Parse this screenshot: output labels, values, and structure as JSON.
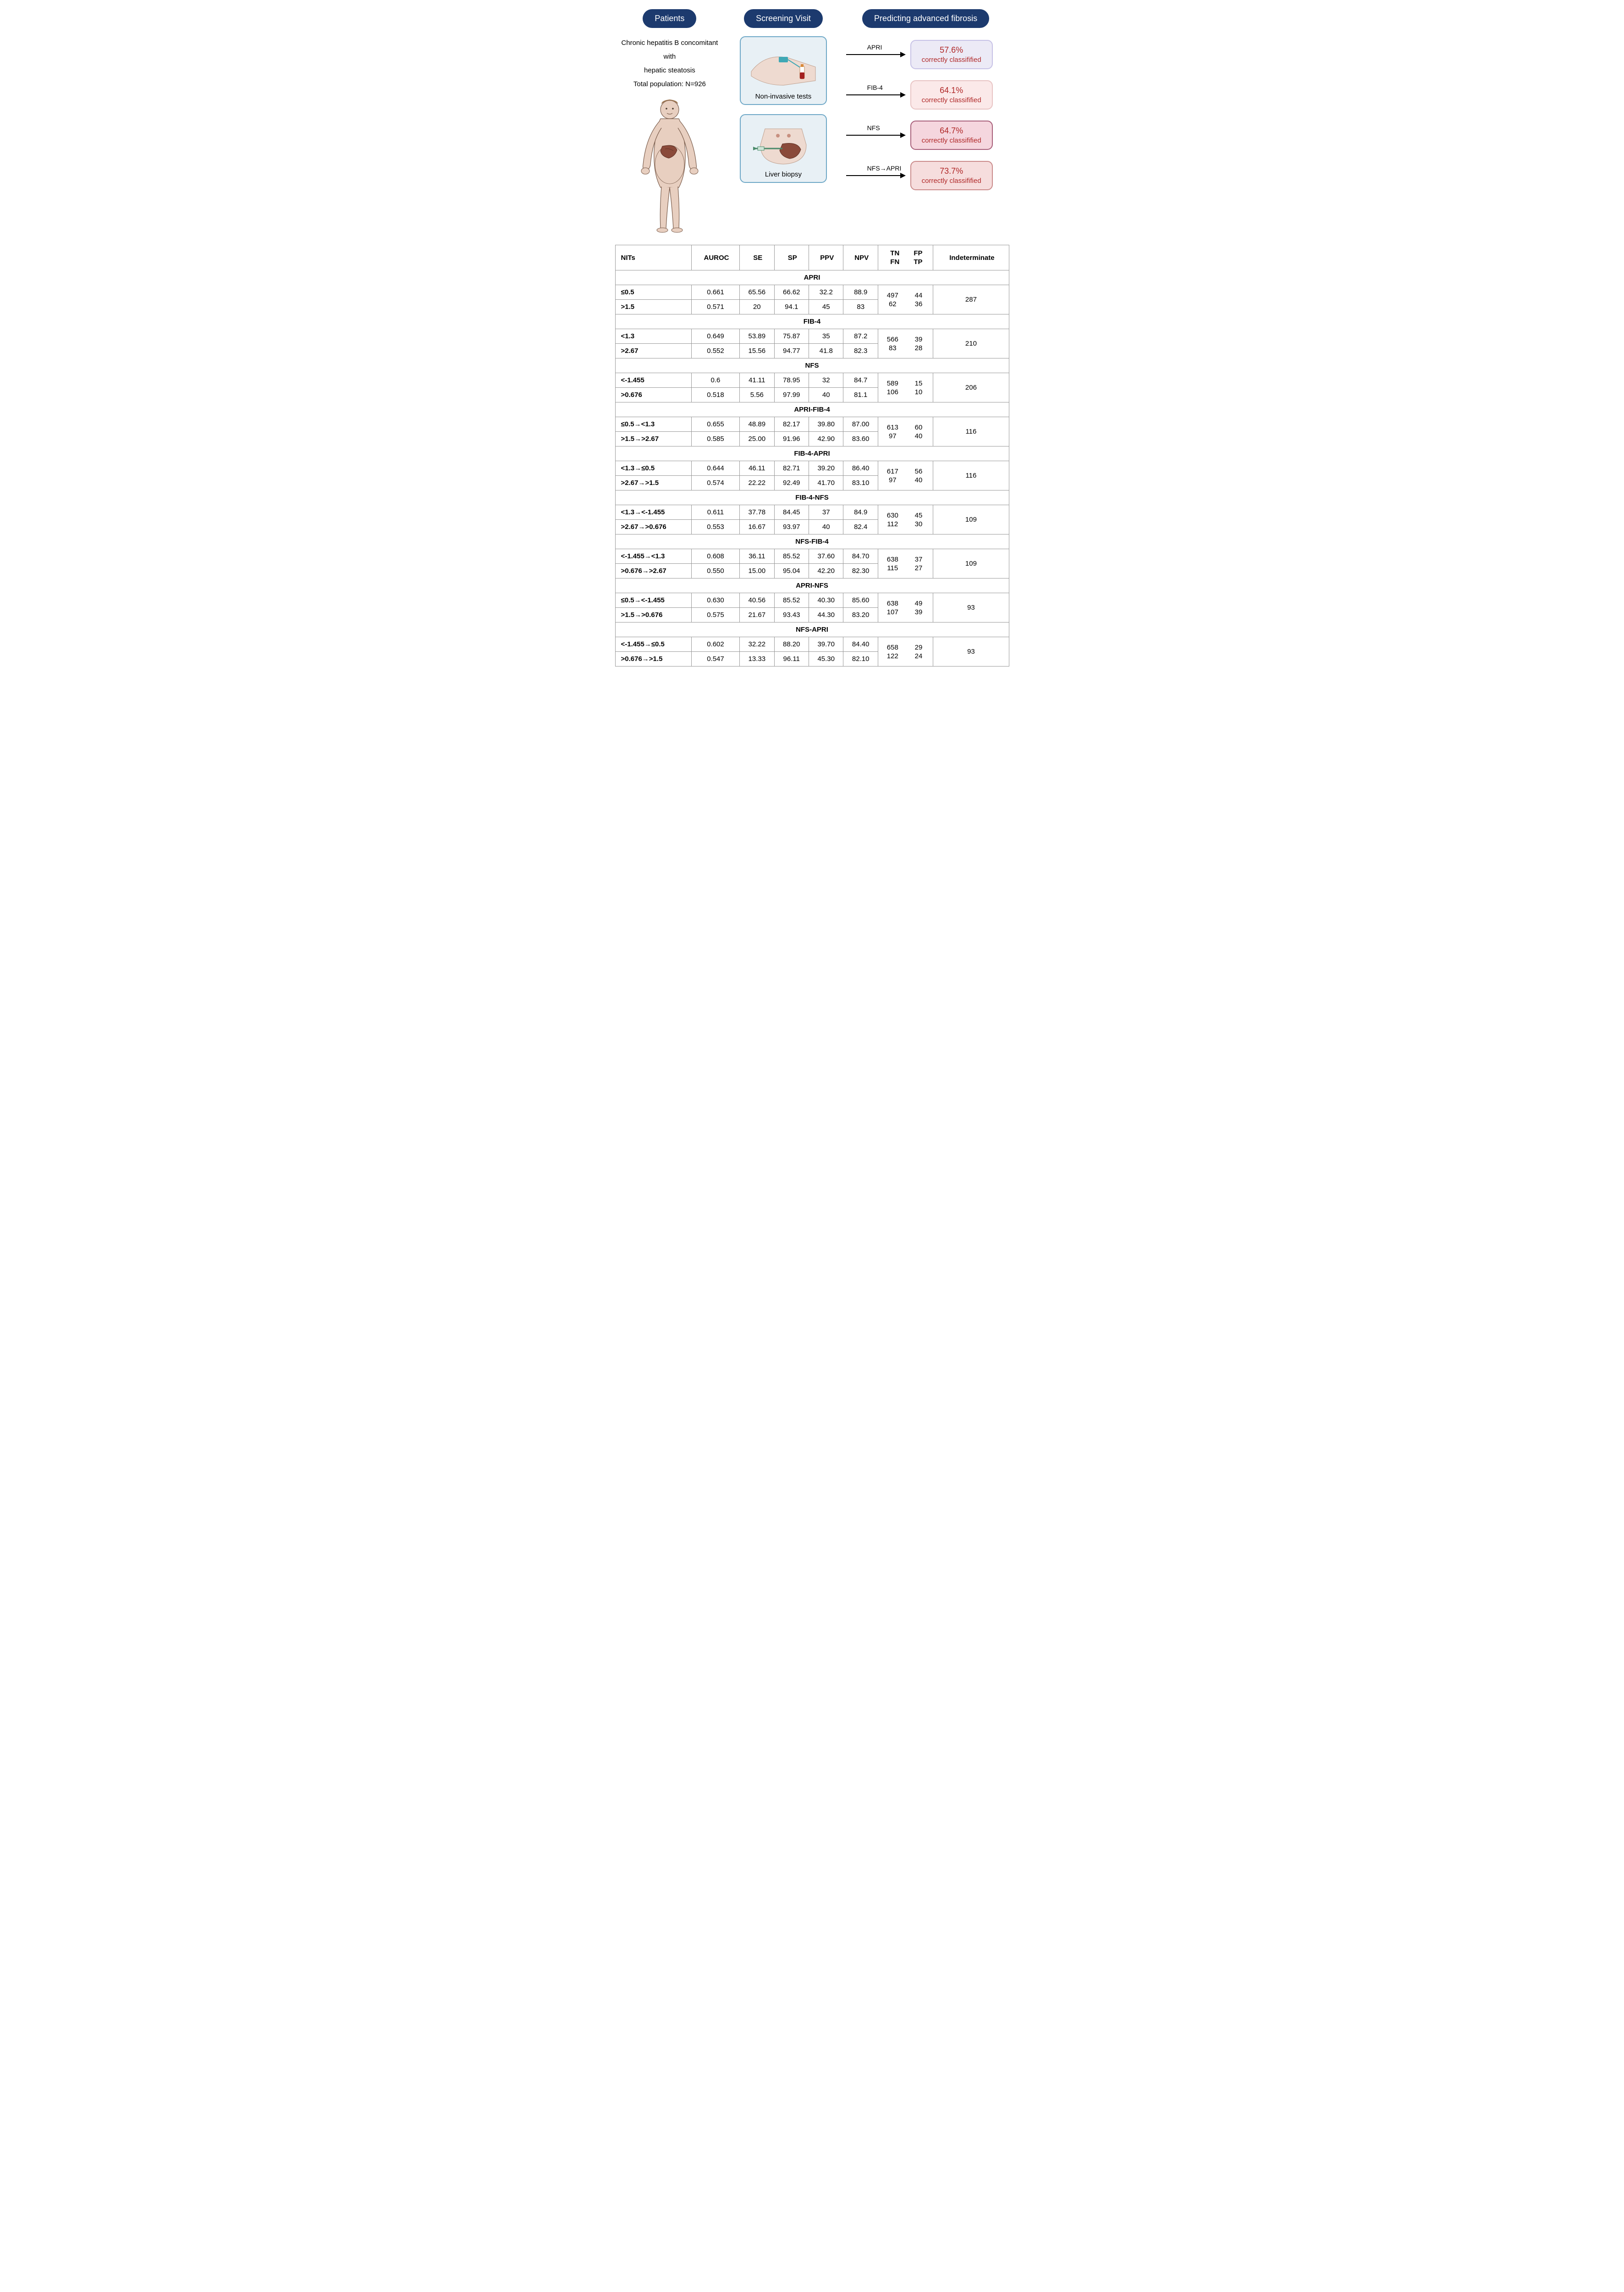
{
  "pills": {
    "patients": "Patients",
    "screening": "Screening Visit",
    "predicting": "Predicting advanced fibrosis"
  },
  "patient_text": {
    "line1": "Chronic hepatitis B  concomitant with",
    "line2": "hepatic steatosis",
    "line3": "Total population: N=926"
  },
  "screening": {
    "noninvasive": "Non-invasive tests",
    "biopsy": "Liver biopsy"
  },
  "predict": [
    {
      "label": "APRI",
      "pct": "57.6%",
      "text": "correctly classifified",
      "bg": "#eceaf6",
      "border": "#c7c2e6"
    },
    {
      "label": "FIB-4",
      "pct": "64.1%",
      "text": "correctly classifified",
      "bg": "#fbe9e9",
      "border": "#e8c4c4"
    },
    {
      "label": "NFS",
      "pct": "64.7%",
      "text": "correctly classifified",
      "bg": "#f5d6de",
      "border": "#a85f7a"
    },
    {
      "label": "NFS→APRI",
      "pct": "73.7%",
      "text": "correctly classifified",
      "bg": "#f6dddd",
      "border": "#ca8b8b"
    }
  ],
  "table": {
    "headers": [
      "NITs",
      "AUROC",
      "SE",
      "SP",
      "PPV",
      "NPV",
      "TN",
      "FP",
      "FN",
      "TP",
      "Indeterminate"
    ],
    "sections": [
      {
        "title": "APRI",
        "rows": [
          {
            "nit": "≤0.5",
            "auroc": "0.661",
            "se": "65.56",
            "sp": "66.62",
            "ppv": "32.2",
            "npv": "88.9"
          },
          {
            "nit": ">1.5",
            "auroc": "0.571",
            "se": "20",
            "sp": "94.1",
            "ppv": "45",
            "npv": "83"
          }
        ],
        "quad": {
          "tn": "497",
          "fp": "44",
          "fn": "62",
          "tp": "36"
        },
        "indet": "287"
      },
      {
        "title": "FIB-4",
        "rows": [
          {
            "nit": "<1.3",
            "auroc": "0.649",
            "se": "53.89",
            "sp": "75.87",
            "ppv": "35",
            "npv": "87.2"
          },
          {
            "nit": ">2.67",
            "auroc": "0.552",
            "se": "15.56",
            "sp": "94.77",
            "ppv": "41.8",
            "npv": "82.3"
          }
        ],
        "quad": {
          "tn": "566",
          "fp": "39",
          "fn": "83",
          "tp": "28"
        },
        "indet": "210"
      },
      {
        "title": "NFS",
        "rows": [
          {
            "nit": "<-1.455",
            "auroc": "0.6",
            "se": "41.11",
            "sp": "78.95",
            "ppv": "32",
            "npv": "84.7"
          },
          {
            "nit": ">0.676",
            "auroc": "0.518",
            "se": "5.56",
            "sp": "97.99",
            "ppv": "40",
            "npv": "81.1"
          }
        ],
        "quad": {
          "tn": "589",
          "fp": "15",
          "fn": "106",
          "tp": "10"
        },
        "indet": "206"
      },
      {
        "title": "APRI-FIB-4",
        "rows": [
          {
            "nit": "≤0.5→<1.3",
            "auroc": "0.655",
            "se": "48.89",
            "sp": "82.17",
            "ppv": "39.80",
            "npv": "87.00"
          },
          {
            "nit": ">1.5→>2.67",
            "auroc": "0.585",
            "se": "25.00",
            "sp": "91.96",
            "ppv": "42.90",
            "npv": "83.60"
          }
        ],
        "quad": {
          "tn": "613",
          "fp": "60",
          "fn": "97",
          "tp": "40"
        },
        "indet": "116"
      },
      {
        "title": "FIB-4-APRI",
        "rows": [
          {
            "nit": "<1.3→≤0.5",
            "auroc": "0.644",
            "se": "46.11",
            "sp": "82.71",
            "ppv": "39.20",
            "npv": "86.40"
          },
          {
            "nit": ">2.67→>1.5",
            "auroc": "0.574",
            "se": "22.22",
            "sp": "92.49",
            "ppv": "41.70",
            "npv": "83.10"
          }
        ],
        "quad": {
          "tn": "617",
          "fp": "56",
          "fn": "97",
          "tp": "40"
        },
        "indet": "116"
      },
      {
        "title": "FIB-4-NFS",
        "rows": [
          {
            "nit": "<1.3→<-1.455",
            "auroc": "0.611",
            "se": "37.78",
            "sp": "84.45",
            "ppv": "37",
            "npv": "84.9"
          },
          {
            "nit": ">2.67→>0.676",
            "auroc": "0.553",
            "se": "16.67",
            "sp": "93.97",
            "ppv": "40",
            "npv": "82.4"
          }
        ],
        "quad": {
          "tn": "630",
          "fp": "45",
          "fn": "112",
          "tp": "30"
        },
        "indet": "109"
      },
      {
        "title": "NFS-FIB-4",
        "rows": [
          {
            "nit": "<-1.455→<1.3",
            "auroc": "0.608",
            "se": "36.11",
            "sp": "85.52",
            "ppv": "37.60",
            "npv": "84.70"
          },
          {
            "nit": ">0.676→>2.67",
            "auroc": "0.550",
            "se": "15.00",
            "sp": "95.04",
            "ppv": "42.20",
            "npv": "82.30"
          }
        ],
        "quad": {
          "tn": "638",
          "fp": "37",
          "fn": "115",
          "tp": "27"
        },
        "indet": "109"
      },
      {
        "title": "APRI-NFS",
        "rows": [
          {
            "nit": "≤0.5→<-1.455",
            "auroc": "0.630",
            "se": "40.56",
            "sp": "85.52",
            "ppv": "40.30",
            "npv": "85.60"
          },
          {
            "nit": ">1.5→>0.676",
            "auroc": "0.575",
            "se": "21.67",
            "sp": "93.43",
            "ppv": "44.30",
            "npv": "83.20"
          }
        ],
        "quad": {
          "tn": "638",
          "fp": "49",
          "fn": "107",
          "tp": "39"
        },
        "indet": "93"
      },
      {
        "title": "NFS-APRI",
        "rows": [
          {
            "nit": "<-1.455→≤0.5",
            "auroc": "0.602",
            "se": "32.22",
            "sp": "88.20",
            "ppv": "39.70",
            "npv": "84.40"
          },
          {
            "nit": ">0.676→>1.5",
            "auroc": "0.547",
            "se": "13.33",
            "sp": "96.11",
            "ppv": "45.30",
            "npv": "82.10"
          }
        ],
        "quad": {
          "tn": "658",
          "fp": "29",
          "fn": "122",
          "tp": "24"
        },
        "indet": "93"
      }
    ]
  }
}
